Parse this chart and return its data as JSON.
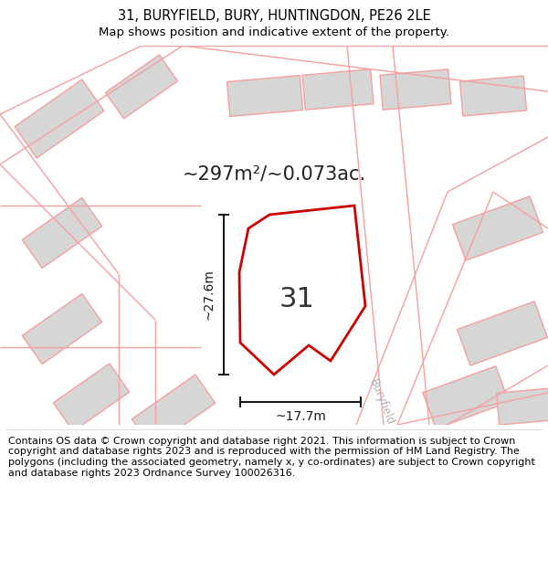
{
  "title": "31, BURYFIELD, BURY, HUNTINGDON, PE26 2LE",
  "subtitle": "Map shows position and indicative extent of the property.",
  "area_label": "~297m²/~0.073ac.",
  "plot_number": "31",
  "width_label": "~17.7m",
  "height_label": "~27.6m",
  "bg_color": "#f0f0f0",
  "building_fill": "#d6d6d6",
  "building_edge": "#f5a0a0",
  "road_color": "#f5a0a0",
  "plot_fill": "#ffffff",
  "plot_edge": "#cc0000",
  "dim_color": "#1a1a1a",
  "footer_text": "Contains OS data © Crown copyright and database right 2021. This information is subject to Crown copyright and database rights 2023 and is reproduced with the permission of HM Land Registry. The polygons (including the associated geometry, namely x, y co-ordinates) are subject to Crown copyright and database rights 2023 Ordnance Survey 100026316.",
  "title_fontsize": 10.5,
  "subtitle_fontsize": 9.5,
  "footer_fontsize": 8.0,
  "area_fontsize": 15,
  "plot_num_fontsize": 22
}
